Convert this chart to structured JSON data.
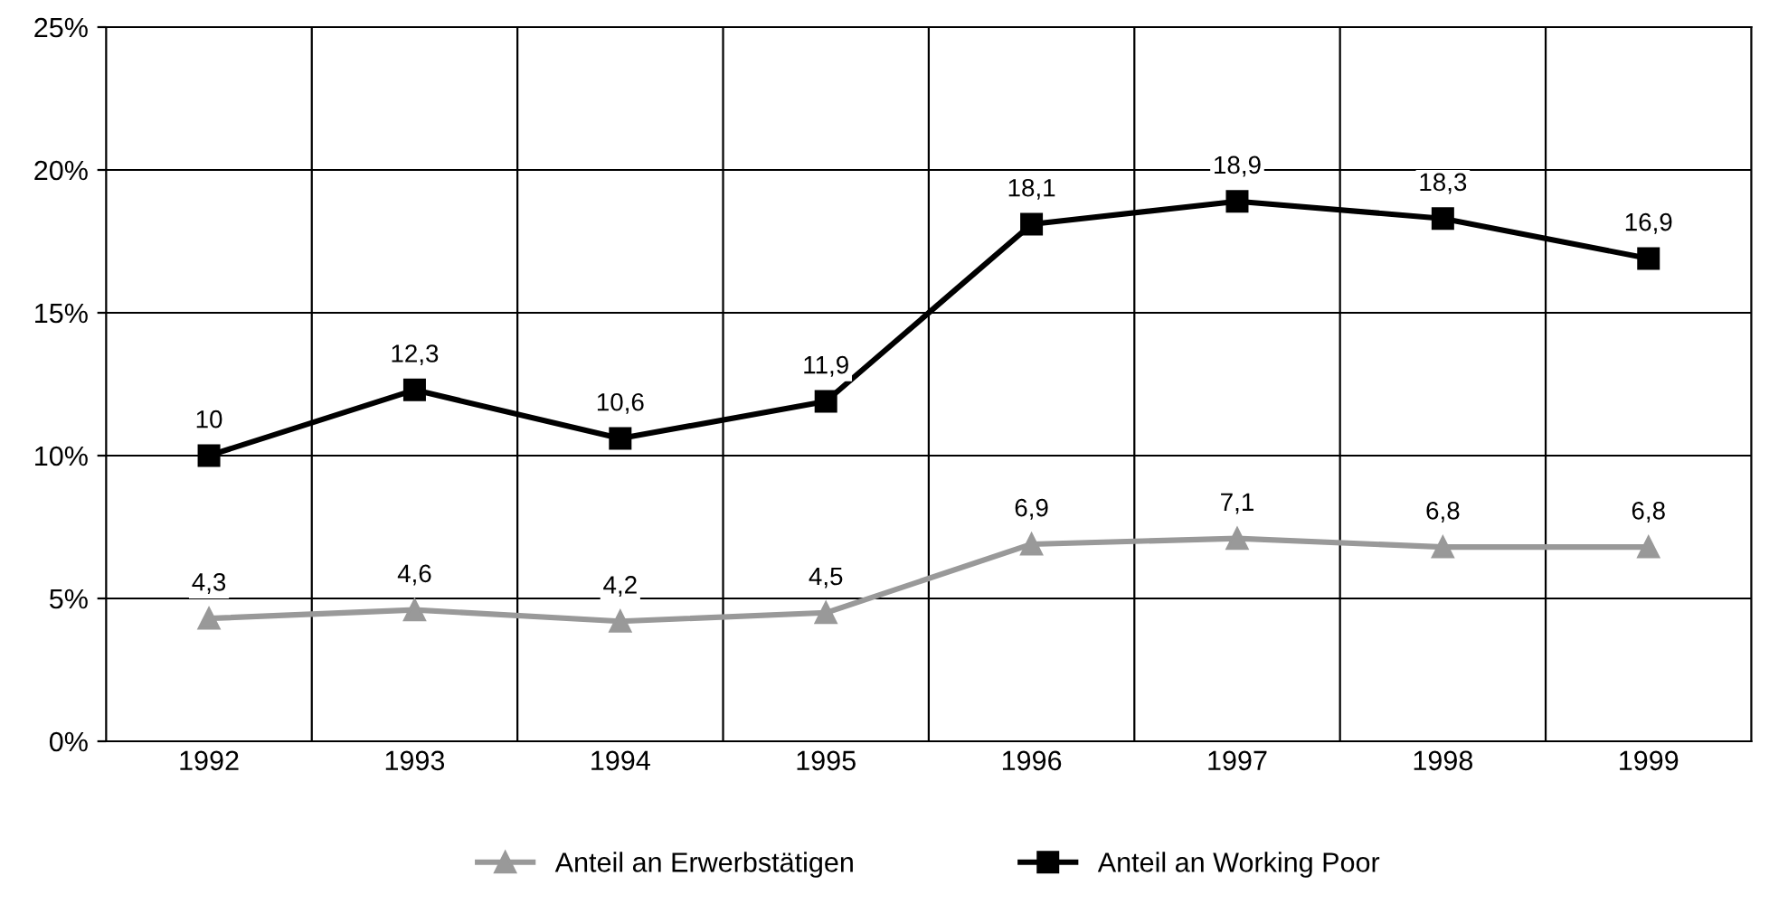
{
  "chart_data": {
    "type": "line",
    "categories": [
      "1992",
      "1993",
      "1994",
      "1995",
      "1996",
      "1997",
      "1998",
      "1999"
    ],
    "series": [
      {
        "name": "Anteil an Erwerbstätigen",
        "color": "#999999",
        "marker": "triangle",
        "values": [
          4.3,
          4.6,
          4.2,
          4.5,
          6.9,
          7.1,
          6.8,
          6.8
        ],
        "value_labels": [
          "4,3",
          "4,6",
          "4,2",
          "4,5",
          "6,9",
          "7,1",
          "6,8",
          "6,8"
        ]
      },
      {
        "name": "Anteil an Working Poor",
        "color": "#000000",
        "marker": "square",
        "values": [
          10,
          12.3,
          10.6,
          11.9,
          18.1,
          18.9,
          18.3,
          16.9
        ],
        "value_labels": [
          "10",
          "12,3",
          "10,6",
          "11,9",
          "18,1",
          "18,9",
          "18,3",
          "16,9"
        ]
      }
    ],
    "ylim": [
      0,
      25
    ],
    "yticks": [
      {
        "value": 0,
        "label": "0%"
      },
      {
        "value": 5,
        "label": "5%"
      },
      {
        "value": 10,
        "label": "10%"
      },
      {
        "value": 15,
        "label": "15%"
      },
      {
        "value": 20,
        "label": "20%"
      },
      {
        "value": 25,
        "label": "25%"
      }
    ],
    "grid": true,
    "legend": "bottom",
    "line_style": "solid"
  }
}
